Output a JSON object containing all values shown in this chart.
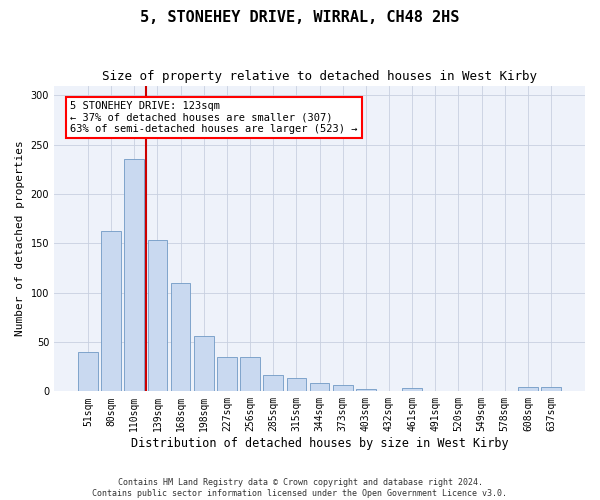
{
  "title": "5, STONEHEY DRIVE, WIRRAL, CH48 2HS",
  "subtitle": "Size of property relative to detached houses in West Kirby",
  "xlabel": "Distribution of detached houses by size in West Kirby",
  "ylabel": "Number of detached properties",
  "categories": [
    "51sqm",
    "80sqm",
    "110sqm",
    "139sqm",
    "168sqm",
    "198sqm",
    "227sqm",
    "256sqm",
    "285sqm",
    "315sqm",
    "344sqm",
    "373sqm",
    "403sqm",
    "432sqm",
    "461sqm",
    "491sqm",
    "520sqm",
    "549sqm",
    "578sqm",
    "608sqm",
    "637sqm"
  ],
  "values": [
    40,
    163,
    236,
    153,
    110,
    56,
    35,
    35,
    17,
    14,
    8,
    6,
    2,
    0,
    3,
    0,
    0,
    0,
    0,
    4,
    4
  ],
  "bar_color": "#c9d9f0",
  "bar_edge_color": "#7099c5",
  "red_line_index": 2,
  "annotation_text": "5 STONEHEY DRIVE: 123sqm\n← 37% of detached houses are smaller (307)\n63% of semi-detached houses are larger (523) →",
  "annotation_box_color": "white",
  "annotation_box_edge_color": "red",
  "red_line_color": "#cc0000",
  "ylim": [
    0,
    310
  ],
  "yticks": [
    0,
    50,
    100,
    150,
    200,
    250,
    300
  ],
  "grid_color": "#c8d0e0",
  "background_color": "#eef2fa",
  "footer": "Contains HM Land Registry data © Crown copyright and database right 2024.\nContains public sector information licensed under the Open Government Licence v3.0.",
  "title_fontsize": 11,
  "subtitle_fontsize": 9,
  "xlabel_fontsize": 8.5,
  "ylabel_fontsize": 8,
  "tick_fontsize": 7,
  "annotation_fontsize": 7.5,
  "footer_fontsize": 6
}
